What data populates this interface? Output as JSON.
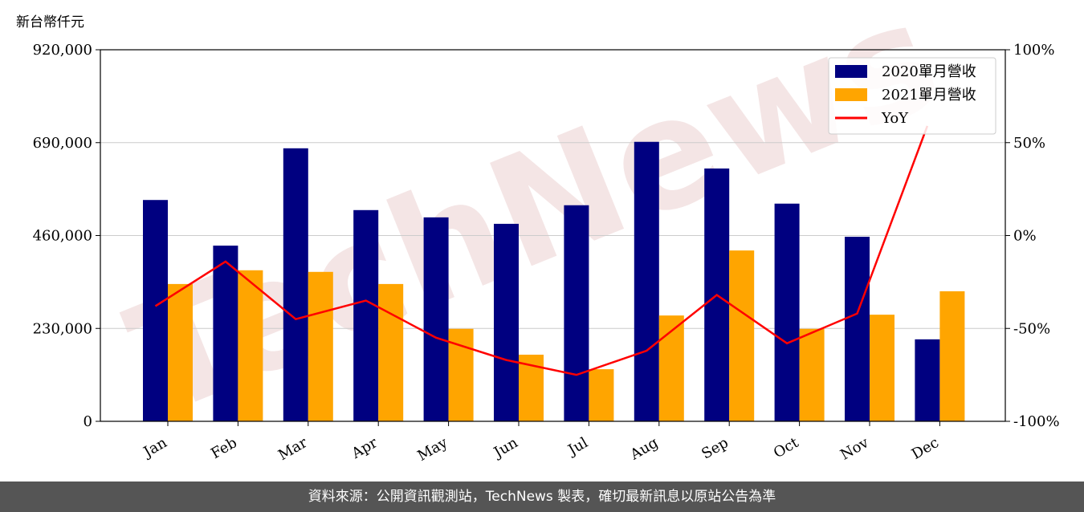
{
  "chart_data": {
    "type": "bar",
    "unit_label": "新台幣仟元",
    "watermark": "TechNews",
    "categories": [
      "Jan",
      "Feb",
      "Mar",
      "Apr",
      "May",
      "Jun",
      "Jul",
      "Aug",
      "Sep",
      "Oct",
      "Nov",
      "Dec"
    ],
    "series": [
      {
        "name": "2020單月營收",
        "color": "#000080",
        "values": [
          548000,
          435000,
          676000,
          523000,
          505000,
          489000,
          535000,
          692000,
          626000,
          539000,
          457000,
          203000
        ]
      },
      {
        "name": "2021單月營收",
        "color": "#ffa500",
        "values": [
          340000,
          374000,
          370000,
          340000,
          229000,
          165000,
          129000,
          262000,
          423000,
          229000,
          264000,
          322000
        ]
      },
      {
        "name": "YoY",
        "color": "#ff0000",
        "type": "line",
        "axis": "y2",
        "values": [
          -38,
          -14,
          -45,
          -35,
          -55,
          -67,
          -75,
          -62,
          -32,
          -58,
          -42,
          59
        ]
      }
    ],
    "ylim": [
      0,
      920000
    ],
    "yticks": [
      0,
      {
        "value": 230000,
        "label": "230,000"
      },
      {
        "value": 460000,
        "label": "460,000"
      },
      {
        "value": 690000,
        "label": "690,000"
      },
      {
        "value": 920000,
        "label": "920,000"
      }
    ],
    "y2lim": [
      -100,
      100
    ],
    "y2ticks": [
      {
        "value": -100,
        "label": "-100%"
      },
      {
        "value": -50,
        "label": "-50%"
      },
      {
        "value": 0,
        "label": "0%"
      },
      {
        "value": 50,
        "label": "50%"
      },
      {
        "value": 100,
        "label": "100%"
      }
    ],
    "grid": true,
    "legend": "upper right"
  },
  "footer": "資料來源：公開資訊觀測站，TechNews 製表，確切最新訊息以原站公告為準"
}
